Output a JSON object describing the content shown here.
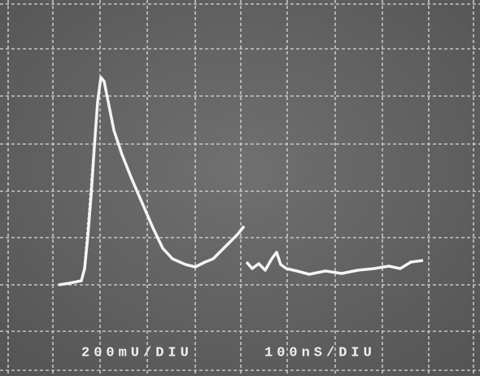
{
  "scale_labels": {
    "vertical": "200mU/DIU",
    "horizontal": "100nS/DIU"
  }
}
